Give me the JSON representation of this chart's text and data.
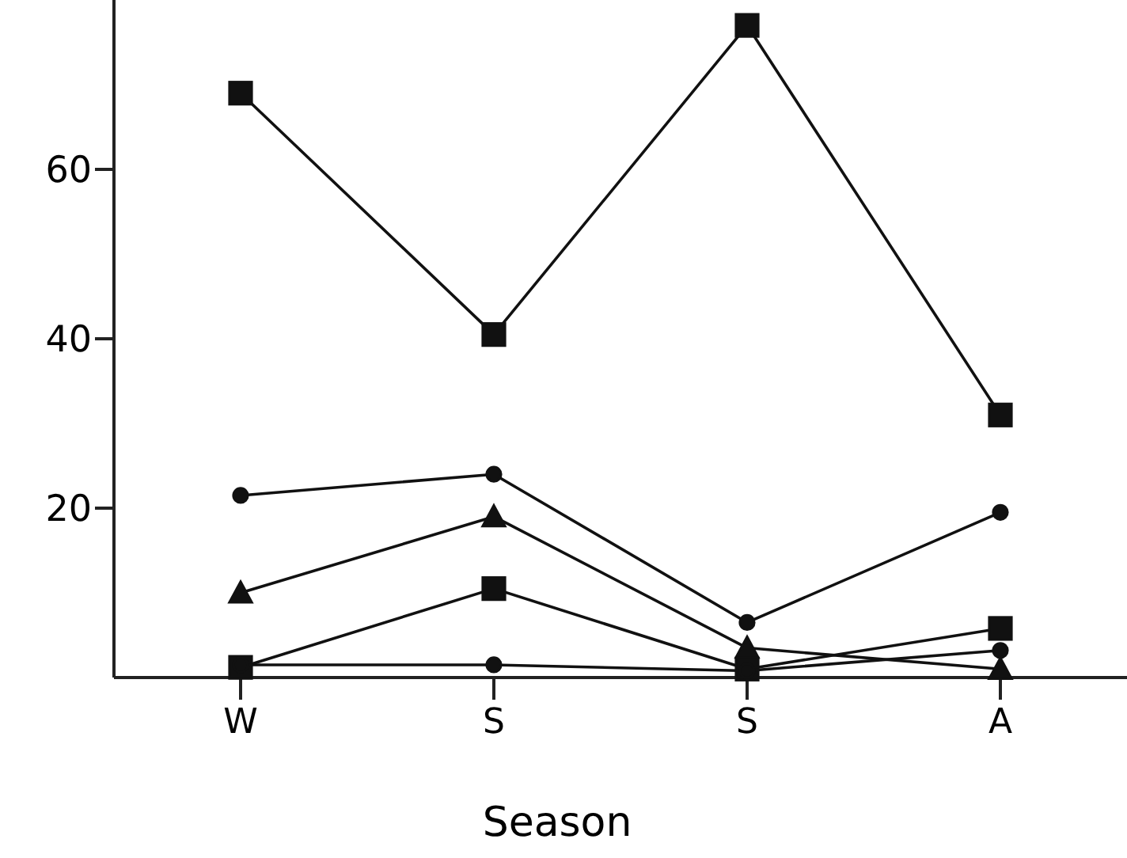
{
  "chart_data": {
    "type": "line",
    "xlabel": "Season",
    "categories": [
      "W",
      "S",
      "S",
      "A"
    ],
    "ylim": [
      0,
      80
    ],
    "yticks": [
      20,
      40,
      60
    ],
    "grid": false,
    "line_style": "solid",
    "series": [
      {
        "color": "#111111",
        "marker": "square",
        "values": [
          69,
          40.5,
          77,
          31
        ]
      },
      {
        "color": "#111111",
        "marker": "circle",
        "values": [
          21.5,
          24,
          6.5,
          19.5
        ]
      },
      {
        "color": "#111111",
        "marker": "triangle",
        "values": [
          10,
          19,
          3.5,
          1
        ]
      },
      {
        "color": "#111111",
        "marker": "square",
        "values": [
          1.2,
          10.5,
          1,
          5.8
        ]
      },
      {
        "color": "#111111",
        "marker": "circle",
        "values": [
          1.5,
          1.5,
          0.8,
          3.2
        ]
      }
    ]
  }
}
